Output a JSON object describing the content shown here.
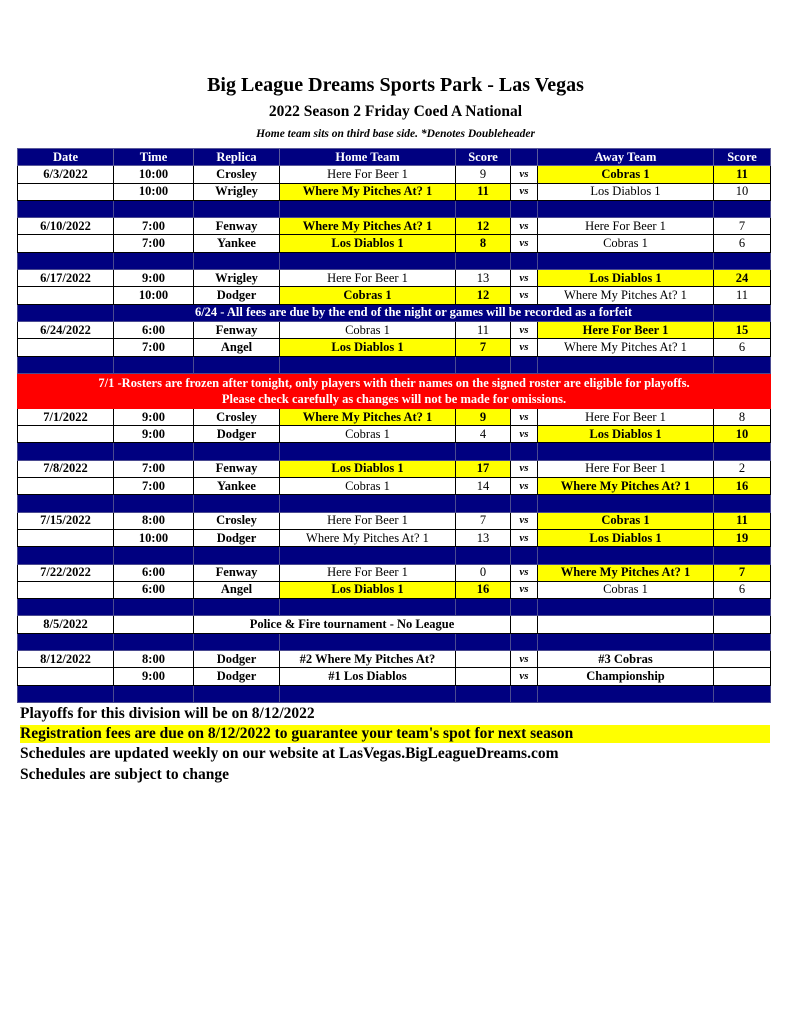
{
  "header": {
    "title": "Big League Dreams Sports Park - Las Vegas",
    "subtitle": "2022 Season 2 Friday Coed A National",
    "note": "Home team sits on third base side.  *Denotes Doubleheader"
  },
  "columns": [
    "Date",
    "Time",
    "Replica",
    "Home Team",
    "Score",
    "",
    "Away Team",
    "Score"
  ],
  "colors": {
    "header_bg": "#000080",
    "winner_highlight": "#ffff00",
    "alert_bg": "#ff0000"
  },
  "rows": [
    {
      "type": "game",
      "date": "6/3/2022",
      "time": "10:00",
      "replica": "Crosley",
      "home": "Here For Beer 1",
      "home_score": "9",
      "vs": "vs",
      "away": "Cobras 1",
      "away_score": "11",
      "winner": "away"
    },
    {
      "type": "game",
      "date": "",
      "time": "10:00",
      "replica": "Wrigley",
      "home": "Where My Pitches At? 1",
      "home_score": "11",
      "vs": "vs",
      "away": "Los Diablos 1",
      "away_score": "10",
      "winner": "home"
    },
    {
      "type": "spacer"
    },
    {
      "type": "game",
      "date": "6/10/2022",
      "time": "7:00",
      "replica": "Fenway",
      "home": "Where My Pitches At? 1",
      "home_score": "12",
      "vs": "vs",
      "away": "Here For Beer 1",
      "away_score": "7",
      "winner": "home"
    },
    {
      "type": "game",
      "date": "",
      "time": "7:00",
      "replica": "Yankee",
      "home": "Los Diablos 1",
      "home_score": "8",
      "vs": "vs",
      "away": "Cobras 1",
      "away_score": "6",
      "winner": "home"
    },
    {
      "type": "spacer"
    },
    {
      "type": "game",
      "date": "6/17/2022",
      "time": "9:00",
      "replica": "Wrigley",
      "home": "Here For Beer 1",
      "home_score": "13",
      "vs": "vs",
      "away": "Los Diablos 1",
      "away_score": "24",
      "winner": "away"
    },
    {
      "type": "game",
      "date": "",
      "time": "10:00",
      "replica": "Dodger",
      "home": "Cobras 1",
      "home_score": "12",
      "vs": "vs",
      "away": "Where My Pitches At? 1",
      "away_score": "11",
      "winner": "home"
    },
    {
      "type": "notice",
      "text": "6/24 - All fees are due by the end of the night or games will be recorded as a forfeit"
    },
    {
      "type": "game",
      "date": "6/24/2022",
      "time": "6:00",
      "replica": "Fenway",
      "home": "Cobras 1",
      "home_score": "11",
      "vs": "vs",
      "away": "Here For Beer 1",
      "away_score": "15",
      "winner": "away"
    },
    {
      "type": "game",
      "date": "",
      "time": "7:00",
      "replica": "Angel",
      "home": "Los Diablos 1",
      "home_score": "7",
      "vs": "vs",
      "away": "Where My Pitches At? 1",
      "away_score": "6",
      "winner": "home"
    },
    {
      "type": "spacer"
    },
    {
      "type": "alert",
      "line1": "7/1 -Rosters are frozen after tonight, only players with their names on the signed roster are eligible for playoffs.",
      "line2": "Please check carefully as changes will not be made for omissions."
    },
    {
      "type": "game",
      "date": "7/1/2022",
      "time": "9:00",
      "replica": "Crosley",
      "home": "Where My Pitches At? 1",
      "home_score": "9",
      "vs": "vs",
      "away": "Here For Beer 1",
      "away_score": "8",
      "winner": "home"
    },
    {
      "type": "game",
      "date": "",
      "time": "9:00",
      "replica": "Dodger",
      "home": "Cobras 1",
      "home_score": "4",
      "vs": "vs",
      "away": "Los Diablos 1",
      "away_score": "10",
      "winner": "away"
    },
    {
      "type": "spacer"
    },
    {
      "type": "game",
      "date": "7/8/2022",
      "time": "7:00",
      "replica": "Fenway",
      "home": "Los Diablos 1",
      "home_score": "17",
      "vs": "vs",
      "away": "Here For Beer 1",
      "away_score": "2",
      "winner": "home"
    },
    {
      "type": "game",
      "date": "",
      "time": "7:00",
      "replica": "Yankee",
      "home": "Cobras 1",
      "home_score": "14",
      "vs": "vs",
      "away": "Where My Pitches At? 1",
      "away_score": "16",
      "winner": "away"
    },
    {
      "type": "spacer"
    },
    {
      "type": "game",
      "date": "7/15/2022",
      "time": "8:00",
      "replica": "Crosley",
      "home": "Here For Beer 1",
      "home_score": "7",
      "vs": "vs",
      "away": "Cobras 1",
      "away_score": "11",
      "winner": "away"
    },
    {
      "type": "game",
      "date": "",
      "time": "10:00",
      "replica": "Dodger",
      "home": "Where My Pitches At? 1",
      "home_score": "13",
      "vs": "vs",
      "away": "Los Diablos 1",
      "away_score": "19",
      "winner": "away"
    },
    {
      "type": "spacer"
    },
    {
      "type": "game",
      "date": "7/22/2022",
      "time": "6:00",
      "replica": "Fenway",
      "home": "Here For Beer 1",
      "home_score": "0",
      "vs": "vs",
      "away": "Where My Pitches At? 1",
      "away_score": "7",
      "winner": "away"
    },
    {
      "type": "game",
      "date": "",
      "time": "6:00",
      "replica": "Angel",
      "home": "Los Diablos 1",
      "home_score": "16",
      "vs": "vs",
      "away": "Cobras 1",
      "away_score": "6",
      "winner": "home"
    },
    {
      "type": "spacer"
    },
    {
      "type": "event",
      "date": "8/5/2022",
      "text": "Police & Fire tournament - No League"
    },
    {
      "type": "spacer"
    },
    {
      "type": "game",
      "date": "8/12/2022",
      "time": "8:00",
      "replica": "Dodger",
      "home": "#2 Where My Pitches At?",
      "home_score": "",
      "vs": "vs",
      "away": "#3 Cobras",
      "away_score": "",
      "winner": "none",
      "playoff": true
    },
    {
      "type": "game",
      "date": "",
      "time": "9:00",
      "replica": "Dodger",
      "home": "#1 Los Diablos",
      "home_score": "",
      "vs": "vs",
      "away": "Championship",
      "away_score": "",
      "winner": "none",
      "playoff": true
    },
    {
      "type": "spacer"
    }
  ],
  "footer": {
    "playoffs": "Playoffs for this division will be on 8/12/2022",
    "registration": "Registration fees are due on 8/12/2022 to guarantee your team's spot for next season",
    "website": "Schedules are updated weekly on our website at LasVegas.BigLeagueDreams.com",
    "subject": "Schedules are subject to change"
  }
}
